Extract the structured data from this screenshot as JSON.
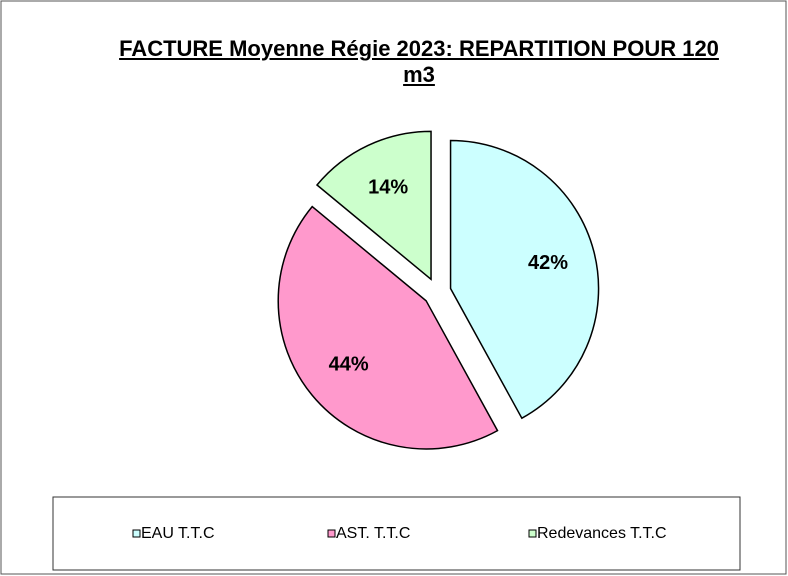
{
  "chart_data": {
    "type": "pie",
    "title": "FACTURE  Moyenne Régie 2023: REPARTITION POUR 120 m3",
    "categories": [
      "EAU T.T.C",
      "AST. T.T.C",
      "Redevances T.T.C"
    ],
    "values": [
      42,
      44,
      14
    ],
    "value_labels": [
      "42%",
      "44%",
      "14%"
    ],
    "colors": [
      "#ccffff",
      "#ff99cc",
      "#ccffcc"
    ],
    "legend": "bottom"
  }
}
